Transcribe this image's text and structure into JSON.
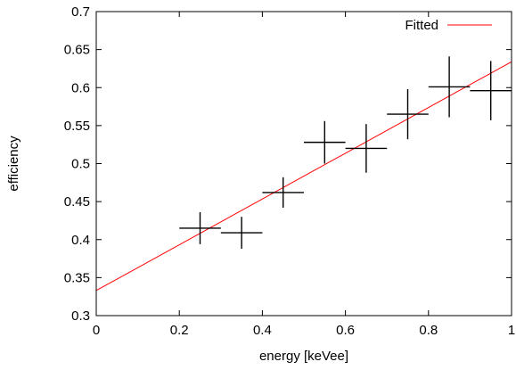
{
  "chart_data": {
    "type": "scatter",
    "xlabel": "energy [keVee]",
    "ylabel": "efficiency",
    "xlim": [
      0,
      1
    ],
    "ylim": [
      0.3,
      0.7
    ],
    "x_ticks": [
      "0",
      "0.2",
      "0.4",
      "0.6",
      "0.8",
      "1"
    ],
    "y_ticks": [
      "0.3",
      "0.35",
      "0.4",
      "0.45",
      "0.5",
      "0.55",
      "0.6",
      "0.65",
      "0.7"
    ],
    "grid": false,
    "legend_position": "top-right",
    "series": [
      {
        "kind": "errorbars",
        "color": "#000000",
        "points": [
          {
            "x": 0.25,
            "y": 0.415,
            "xerr": 0.05,
            "yerr": 0.021
          },
          {
            "x": 0.35,
            "y": 0.409,
            "xerr": 0.05,
            "yerr": 0.021
          },
          {
            "x": 0.45,
            "y": 0.462,
            "xerr": 0.05,
            "yerr": 0.02
          },
          {
            "x": 0.55,
            "y": 0.528,
            "xerr": 0.05,
            "yerr": 0.028
          },
          {
            "x": 0.65,
            "y": 0.52,
            "xerr": 0.05,
            "yerr": 0.032
          },
          {
            "x": 0.75,
            "y": 0.565,
            "xerr": 0.05,
            "yerr": 0.033
          },
          {
            "x": 0.85,
            "y": 0.601,
            "xerr": 0.05,
            "yerr": 0.04
          },
          {
            "x": 0.95,
            "y": 0.596,
            "xerr": 0.05,
            "yerr": 0.039
          }
        ]
      },
      {
        "name": "Fitted",
        "kind": "line",
        "color": "#ff0000",
        "x": [
          0,
          1
        ],
        "y": [
          0.333,
          0.634
        ]
      }
    ]
  }
}
